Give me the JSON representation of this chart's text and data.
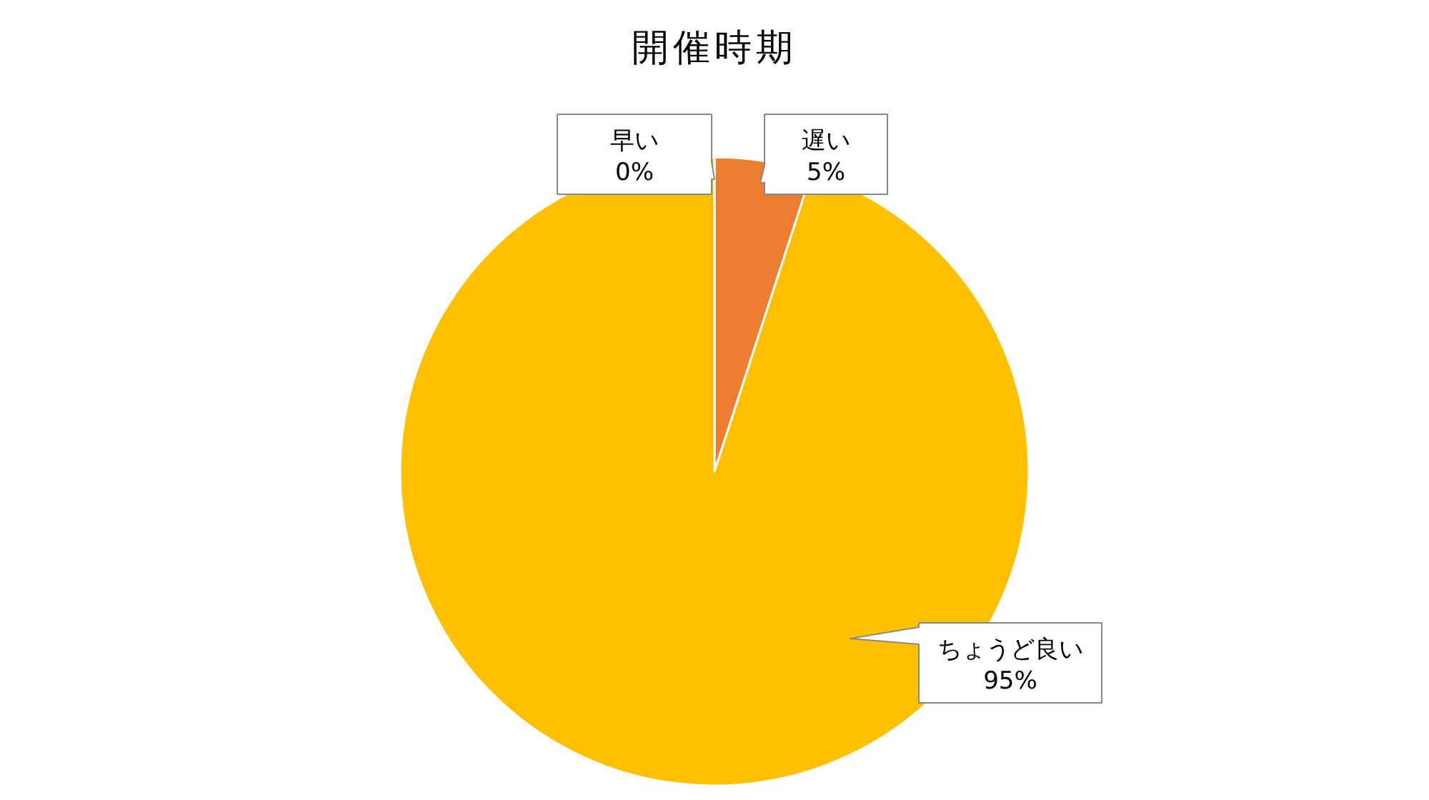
{
  "chart_data": {
    "type": "pie",
    "title": "開催時期",
    "categories": [
      "早い",
      "遅い",
      "ちょうど良い"
    ],
    "values": [
      0,
      5,
      95
    ],
    "colors": [
      "#4472c4",
      "#ed7d31",
      "#ffc000"
    ],
    "value_labels": [
      "0%",
      "5%",
      "95%"
    ]
  }
}
